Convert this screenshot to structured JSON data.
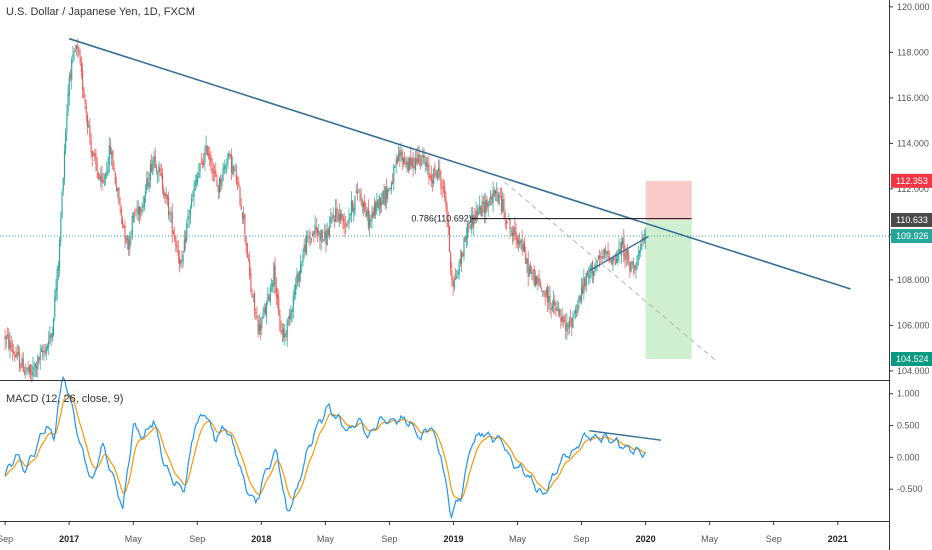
{
  "chart_data": {
    "type": "candlestick",
    "title": "U.S. Dollar / Japanese Yen, 1D, FXCM",
    "colors": {
      "up": "#26a69a",
      "down": "#ef5350",
      "trendline": "#3a6f94",
      "macd": "#2196f3",
      "signal": "#ff9800"
    },
    "price_axis": {
      "min": 103.6,
      "max": 120.3,
      "ticks": [
        "104.000",
        "106.000",
        "108.000",
        "110.000",
        "112.000",
        "114.000",
        "116.000",
        "118.000",
        "120.000"
      ]
    },
    "time_axis": {
      "labels": [
        {
          "t": 0.0,
          "label": "Sep",
          "bold": false
        },
        {
          "t": 0.25,
          "label": "2017",
          "bold": true
        },
        {
          "t": 0.5,
          "label": "May",
          "bold": false
        },
        {
          "t": 0.75,
          "label": "Sep",
          "bold": false
        },
        {
          "t": 1.0,
          "label": "2018",
          "bold": true
        },
        {
          "t": 1.25,
          "label": "May",
          "bold": false
        },
        {
          "t": 1.5,
          "label": "Sep",
          "bold": false
        },
        {
          "t": 1.75,
          "label": "2019",
          "bold": true
        },
        {
          "t": 2.0,
          "label": "May",
          "bold": false
        },
        {
          "t": 2.25,
          "label": "Sep",
          "bold": false
        },
        {
          "t": 2.5,
          "label": "2020",
          "bold": true
        },
        {
          "t": 2.75,
          "label": "May",
          "bold": false
        },
        {
          "t": 3.0,
          "label": "Sep",
          "bold": false
        },
        {
          "t": 3.25,
          "label": "2021",
          "bold": true
        }
      ]
    },
    "price_path": [
      [
        0.0,
        105.5
      ],
      [
        0.05,
        104.5
      ],
      [
        0.1,
        103.8
      ],
      [
        0.18,
        105.5
      ],
      [
        0.21,
        109.0
      ],
      [
        0.23,
        113.5
      ],
      [
        0.25,
        117.0
      ],
      [
        0.28,
        118.2
      ],
      [
        0.31,
        116.0
      ],
      [
        0.34,
        113.5
      ],
      [
        0.38,
        112.0
      ],
      [
        0.41,
        113.8
      ],
      [
        0.45,
        111.0
      ],
      [
        0.48,
        109.5
      ],
      [
        0.5,
        110.8
      ],
      [
        0.54,
        111.5
      ],
      [
        0.58,
        113.5
      ],
      [
        0.62,
        112.0
      ],
      [
        0.65,
        110.5
      ],
      [
        0.69,
        108.5
      ],
      [
        0.71,
        110.5
      ],
      [
        0.75,
        112.5
      ],
      [
        0.79,
        113.8
      ],
      [
        0.83,
        112.0
      ],
      [
        0.87,
        113.5
      ],
      [
        0.9,
        112.5
      ],
      [
        0.93,
        110.8
      ],
      [
        0.96,
        107.5
      ],
      [
        0.99,
        105.8
      ],
      [
        1.02,
        106.8
      ],
      [
        1.05,
        108.5
      ],
      [
        1.07,
        106.0
      ],
      [
        1.09,
        105.5
      ],
      [
        1.13,
        107.5
      ],
      [
        1.17,
        109.5
      ],
      [
        1.21,
        110.2
      ],
      [
        1.25,
        109.8
      ],
      [
        1.29,
        111.0
      ],
      [
        1.33,
        110.5
      ],
      [
        1.38,
        112.0
      ],
      [
        1.42,
        110.5
      ],
      [
        1.46,
        111.5
      ],
      [
        1.5,
        112.0
      ],
      [
        1.54,
        113.5
      ],
      [
        1.58,
        113.0
      ],
      [
        1.62,
        113.5
      ],
      [
        1.66,
        112.5
      ],
      [
        1.69,
        112.8
      ],
      [
        1.72,
        111.5
      ],
      [
        1.74,
        108.5
      ],
      [
        1.75,
        107.8
      ],
      [
        1.77,
        108.5
      ],
      [
        1.81,
        110.5
      ],
      [
        1.85,
        111.0
      ],
      [
        1.89,
        111.5
      ],
      [
        1.92,
        111.8
      ],
      [
        1.95,
        111.0
      ],
      [
        1.98,
        110.0
      ],
      [
        2.01,
        109.8
      ],
      [
        2.04,
        108.5
      ],
      [
        2.07,
        108.0
      ],
      [
        2.1,
        107.5
      ],
      [
        2.13,
        107.0
      ],
      [
        2.16,
        106.5
      ],
      [
        2.19,
        105.8
      ],
      [
        2.21,
        106.2
      ],
      [
        2.23,
        106.8
      ],
      [
        2.26,
        107.8
      ],
      [
        2.29,
        108.5
      ],
      [
        2.32,
        108.8
      ],
      [
        2.35,
        109.2
      ],
      [
        2.38,
        108.8
      ],
      [
        2.41,
        109.5
      ],
      [
        2.44,
        108.5
      ],
      [
        2.47,
        109.0
      ],
      [
        2.5,
        109.9
      ]
    ],
    "macd_axis": {
      "min": -1.0,
      "max": 1.2,
      "ticks": [
        "1.000",
        "0.500",
        "0.000",
        "-0.500"
      ]
    },
    "macd_label": "MACD (12, 26, close, 9)",
    "macd_path": [
      [
        0.0,
        -0.3
      ],
      [
        0.04,
        0.05
      ],
      [
        0.08,
        -0.2
      ],
      [
        0.12,
        0.15
      ],
      [
        0.16,
        0.5
      ],
      [
        0.19,
        0.3
      ],
      [
        0.21,
        0.9
      ],
      [
        0.23,
        1.3
      ],
      [
        0.26,
        0.8
      ],
      [
        0.3,
        0.1
      ],
      [
        0.34,
        -0.4
      ],
      [
        0.38,
        0.2
      ],
      [
        0.42,
        -0.3
      ],
      [
        0.46,
        -0.8
      ],
      [
        0.5,
        0.5
      ],
      [
        0.54,
        0.3
      ],
      [
        0.58,
        0.6
      ],
      [
        0.62,
        -0.1
      ],
      [
        0.66,
        -0.4
      ],
      [
        0.7,
        -0.5
      ],
      [
        0.74,
        0.5
      ],
      [
        0.78,
        0.7
      ],
      [
        0.82,
        0.3
      ],
      [
        0.86,
        0.5
      ],
      [
        0.9,
        0.1
      ],
      [
        0.94,
        -0.5
      ],
      [
        0.98,
        -0.7
      ],
      [
        1.02,
        -0.2
      ],
      [
        1.06,
        0.1
      ],
      [
        1.1,
        -0.9
      ],
      [
        1.14,
        -0.5
      ],
      [
        1.18,
        0.1
      ],
      [
        1.22,
        0.5
      ],
      [
        1.26,
        0.8
      ],
      [
        1.3,
        0.6
      ],
      [
        1.34,
        0.4
      ],
      [
        1.38,
        0.6
      ],
      [
        1.42,
        0.3
      ],
      [
        1.46,
        0.6
      ],
      [
        1.5,
        0.55
      ],
      [
        1.54,
        0.6
      ],
      [
        1.58,
        0.55
      ],
      [
        1.62,
        0.3
      ],
      [
        1.66,
        0.5
      ],
      [
        1.7,
        0.05
      ],
      [
        1.74,
        -0.9
      ],
      [
        1.78,
        -0.6
      ],
      [
        1.82,
        0.2
      ],
      [
        1.86,
        0.4
      ],
      [
        1.9,
        0.3
      ],
      [
        1.94,
        0.25
      ],
      [
        1.98,
        -0.1
      ],
      [
        2.02,
        -0.2
      ],
      [
        2.06,
        -0.4
      ],
      [
        2.1,
        -0.6
      ],
      [
        2.14,
        -0.3
      ],
      [
        2.18,
        0.0
      ],
      [
        2.22,
        0.1
      ],
      [
        2.26,
        0.35
      ],
      [
        2.3,
        0.3
      ],
      [
        2.34,
        0.3
      ],
      [
        2.38,
        0.25
      ],
      [
        2.42,
        0.15
      ],
      [
        2.46,
        0.1
      ],
      [
        2.5,
        0.05
      ]
    ],
    "drawings": {
      "fib_label": "0.786(110.692)",
      "fib_price": 110.69,
      "trend_main": [
        [
          0.25,
          118.6
        ],
        [
          3.3,
          107.6
        ]
      ],
      "trend_local": [
        [
          2.28,
          108.4
        ],
        [
          2.51,
          109.9
        ]
      ],
      "trend_support_dashed": [
        [
          1.95,
          112.3
        ],
        [
          2.78,
          104.4
        ]
      ],
      "macd_divergence": [
        [
          2.28,
          0.42
        ],
        [
          2.56,
          0.27
        ]
      ],
      "position_entry": 110.63,
      "position_stop": 112.353,
      "position_target": 104.524,
      "position_t": [
        2.5,
        2.68
      ]
    },
    "price_tags": [
      {
        "value": 112.353,
        "label": "112.353",
        "color": "#f23645"
      },
      {
        "value": 110.633,
        "label": "110.633",
        "color": "#4a4a4a"
      },
      {
        "value": 109.926,
        "label": "109.926",
        "color": "#26a69a"
      },
      {
        "value": 104.524,
        "label": "104.524",
        "color": "#089981"
      }
    ],
    "current_price": 109.926
  }
}
